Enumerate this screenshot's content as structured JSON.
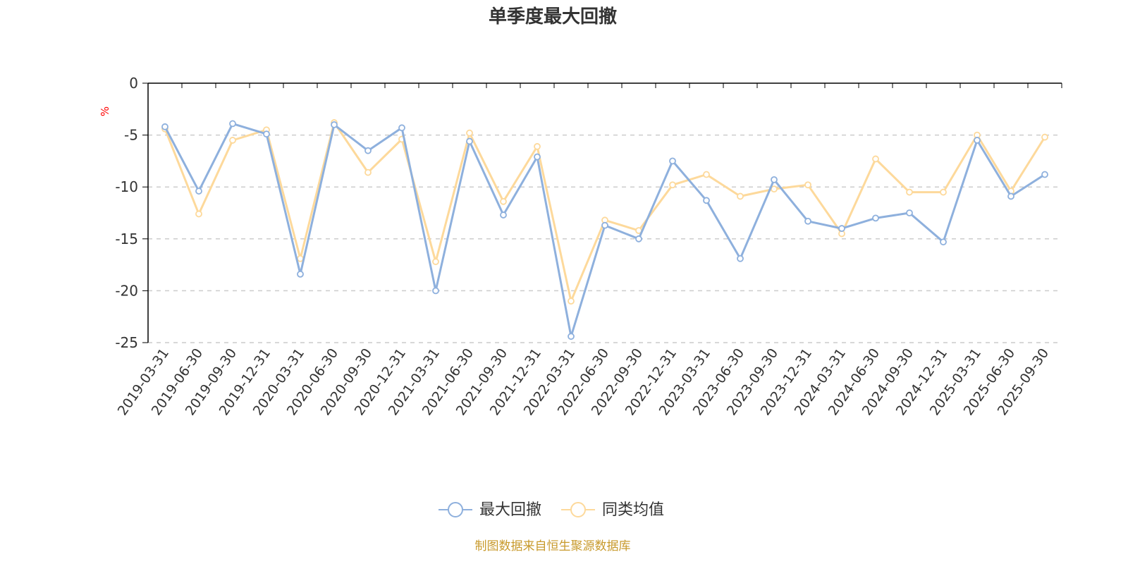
{
  "chart_data": {
    "type": "line",
    "title": "单季度最大回撤",
    "ylabel": "%",
    "xlabel": "",
    "ylim": [
      -25,
      0
    ],
    "yticks": [
      0,
      -5,
      -10,
      -15,
      -20,
      -25
    ],
    "grid": true,
    "legend_position": "bottom-center",
    "categories": [
      "2019-03-31",
      "2019-06-30",
      "2019-09-30",
      "2019-12-31",
      "2020-03-31",
      "2020-06-30",
      "2020-09-30",
      "2020-12-31",
      "2021-03-31",
      "2021-06-30",
      "2021-09-30",
      "2021-12-31",
      "2022-03-31",
      "2022-06-30",
      "2022-09-30",
      "2022-12-31",
      "2023-03-31",
      "2023-06-30",
      "2023-09-30",
      "2023-12-31",
      "2024-03-31",
      "2024-06-30",
      "2024-09-30",
      "2024-12-31",
      "2025-03-31",
      "2025-06-30",
      "2025-09-30"
    ],
    "series": [
      {
        "name": "最大回撤",
        "color": "#8eb0dd",
        "values": [
          -4.2,
          -10.4,
          -3.9,
          -4.9,
          -18.4,
          -4.0,
          -6.5,
          -4.3,
          -20.0,
          -5.6,
          -12.7,
          -7.1,
          -24.4,
          -13.7,
          -15.0,
          -7.5,
          -11.3,
          -16.9,
          -9.3,
          -13.3,
          -14.0,
          -13.0,
          -12.5,
          -15.3,
          -5.5,
          -10.9,
          -8.8
        ]
      },
      {
        "name": "同类均值",
        "color": "#fdd99b",
        "values": [
          -4.4,
          -12.6,
          -5.5,
          -4.5,
          -16.9,
          -3.8,
          -8.6,
          -5.4,
          -17.2,
          -4.8,
          -11.4,
          -6.1,
          -21.0,
          -13.2,
          -14.2,
          -9.8,
          -8.8,
          -10.9,
          -10.2,
          -9.8,
          -14.5,
          -7.3,
          -10.5,
          -10.5,
          -5.0,
          -10.4,
          -5.2
        ]
      }
    ],
    "source_note": "制图数据来自恒生聚源数据库"
  },
  "colors": {
    "axis": "#000000",
    "grid": "#cccccc",
    "text": "#333333",
    "unit": "#ff0000",
    "source": "#c89a2c"
  }
}
